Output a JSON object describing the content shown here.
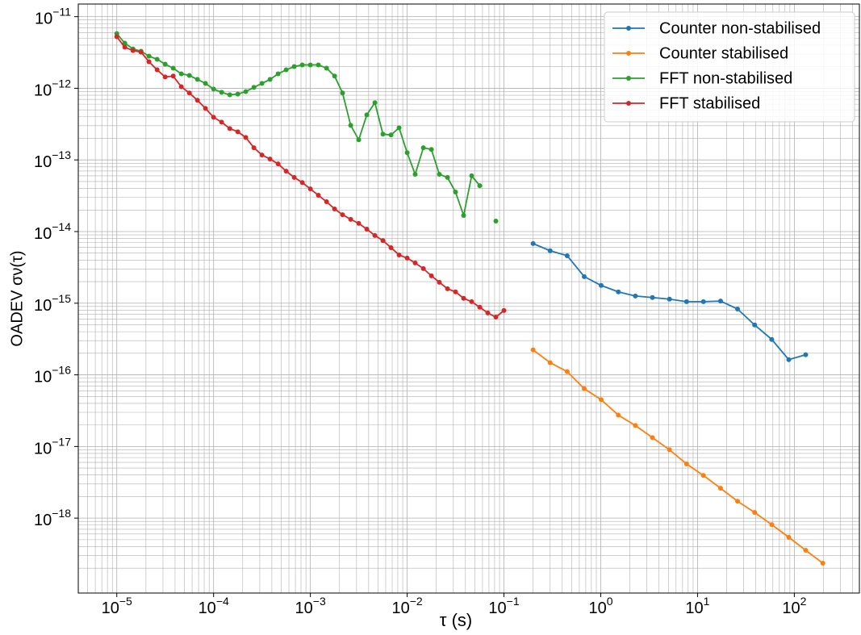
{
  "chart_data": {
    "type": "line",
    "x_label": "τ (s)",
    "y_label": "OADEV σν(τ)",
    "x_scale": "log",
    "y_scale": "log",
    "xlim": [
      4e-06,
      470
    ],
    "ylim": [
      9e-20,
      1.5e-11
    ],
    "xticks": [
      {
        "value": 1e-05,
        "label": "10^−5"
      },
      {
        "value": 0.0001,
        "label": "10^−4"
      },
      {
        "value": 0.001,
        "label": "10^−3"
      },
      {
        "value": 0.01,
        "label": "10^−2"
      },
      {
        "value": 0.1,
        "label": "10^−1"
      },
      {
        "value": 1,
        "label": "10^0"
      },
      {
        "value": 10,
        "label": "10^1"
      },
      {
        "value": 100,
        "label": "10^2"
      }
    ],
    "yticks": [
      {
        "value": 1e-11,
        "label": "10^−11"
      },
      {
        "value": 1e-12,
        "label": "10^−12"
      },
      {
        "value": 1e-13,
        "label": "10^−13"
      },
      {
        "value": 1e-14,
        "label": "10^−14"
      },
      {
        "value": 1e-15,
        "label": "10^−15"
      },
      {
        "value": 1e-16,
        "label": "10^−16"
      },
      {
        "value": 1e-17,
        "label": "10^−17"
      },
      {
        "value": 1e-18,
        "label": "10^−18"
      }
    ],
    "grid": true,
    "minor_grid": true,
    "legend": "upper right",
    "series": [
      {
        "name": "Counter non-stabilised",
        "color": "#1f77b4",
        "x": [
          0.2,
          0.3,
          0.45,
          0.675,
          1.01,
          1.52,
          2.28,
          3.42,
          5.13,
          7.7,
          11.5,
          17.3,
          25.9,
          38.9,
          58.4,
          87.6,
          131
        ],
        "values": [
          6.8e-15,
          5.4e-15,
          4.6e-15,
          2.35e-15,
          1.77e-15,
          1.44e-15,
          1.26e-15,
          1.2e-15,
          1.14e-15,
          1.05e-15,
          1.05e-15,
          1.07e-15,
          8.3e-16,
          4.97e-16,
          3.12e-16,
          1.63e-16,
          1.91e-16
        ]
      },
      {
        "name": "Counter stabilised",
        "color": "#ff7f0e",
        "x": [
          0.2,
          0.3,
          0.45,
          0.675,
          1.01,
          1.52,
          2.28,
          3.42,
          5.13,
          7.7,
          11.5,
          17.3,
          25.9,
          38.9,
          58.4,
          87.6,
          131,
          197
        ],
        "values": [
          2.23e-16,
          1.48e-16,
          1.11e-16,
          6.4e-17,
          4.5e-17,
          2.74e-17,
          1.96e-17,
          1.33e-17,
          9e-18,
          5.7e-18,
          3.94e-18,
          2.61e-18,
          1.72e-18,
          1.2e-18,
          8.1e-19,
          5.4e-19,
          3.56e-19,
          2.35e-19
        ]
      },
      {
        "name": "FFT non-stabilised",
        "color": "#2ca02c",
        "x": [
          1e-05,
          1.21e-05,
          1.47e-05,
          1.78e-05,
          2.15e-05,
          2.61e-05,
          3.16e-05,
          3.83e-05,
          4.64e-05,
          5.62e-05,
          6.81e-05,
          8.25e-05,
          0.0001,
          0.000121,
          0.000147,
          0.000178,
          0.000215,
          0.000261,
          0.000316,
          0.000383,
          0.000464,
          0.000562,
          0.000681,
          0.000825,
          0.001,
          0.00121,
          0.00147,
          0.00178,
          0.00215,
          0.00261,
          0.00316,
          0.00383,
          0.00464,
          0.00562,
          0.00681,
          0.00825,
          0.01,
          0.0121,
          0.0147,
          0.0178,
          0.0215,
          0.0261,
          0.0316,
          0.0383,
          0.0464,
          0.0562,
          0.0681,
          0.0825
        ],
        "values": [
          5.8e-12,
          4.26e-12,
          3.55e-12,
          3.29e-12,
          2.81e-12,
          2.54e-12,
          2.17e-12,
          1.91e-12,
          1.59e-12,
          1.51e-12,
          1.33e-12,
          1.17e-12,
          9.75e-13,
          8.8e-13,
          8.1e-13,
          8.3e-13,
          9e-13,
          1.03e-12,
          1.17e-12,
          1.33e-12,
          1.59e-12,
          1.81e-12,
          2.01e-12,
          2.12e-12,
          2.12e-12,
          2.12e-12,
          1.91e-12,
          1.48e-12,
          8.6e-13,
          3.04e-13,
          1.91e-13,
          4.26e-13,
          6.3e-13,
          2.29e-13,
          2.23e-13,
          2.81e-13,
          1.26e-13,
          6.3e-14,
          1.48e-13,
          1.4e-13,
          6.3e-14,
          5.7e-14,
          3.56e-14,
          1.68e-14,
          6e-14,
          4.37e-14,
          null,
          1.4e-14
        ]
      },
      {
        "name": "FFT stabilised",
        "color": "#d62728",
        "x": [
          1e-05,
          1.21e-05,
          1.47e-05,
          1.78e-05,
          2.15e-05,
          2.61e-05,
          3.16e-05,
          3.83e-05,
          4.64e-05,
          5.62e-05,
          6.81e-05,
          8.25e-05,
          0.0001,
          0.000121,
          0.000147,
          0.000178,
          0.000215,
          0.000261,
          0.000316,
          0.000383,
          0.000464,
          0.000562,
          0.000681,
          0.000825,
          0.001,
          0.00121,
          0.00147,
          0.00178,
          0.00215,
          0.00261,
          0.00316,
          0.00383,
          0.00464,
          0.00562,
          0.00681,
          0.00825,
          0.01,
          0.0121,
          0.0147,
          0.0178,
          0.0215,
          0.0261,
          0.0316,
          0.0383,
          0.0464,
          0.0562,
          0.0681,
          0.0825,
          0.1
        ],
        "values": [
          5.24e-12,
          3.74e-12,
          3.37e-12,
          3.2e-12,
          2.35e-12,
          1.81e-12,
          1.44e-12,
          1.48e-12,
          1.05e-12,
          8.6e-13,
          6.8e-13,
          5.24e-13,
          3.94e-13,
          3.37e-13,
          2.74e-13,
          2.47e-13,
          2.06e-13,
          1.48e-13,
          1.17e-13,
          1.03e-13,
          8.8e-14,
          6.97e-14,
          5.7e-14,
          4.84e-14,
          3.94e-14,
          3.21e-14,
          2.61e-14,
          2.07e-14,
          1.72e-14,
          1.48e-14,
          1.3e-14,
          1.08e-14,
          8.8e-15,
          7.5e-15,
          5.96e-15,
          4.72e-15,
          4.26e-15,
          3.65e-15,
          3.04e-15,
          2.41e-15,
          1.96e-15,
          1.59e-15,
          1.44e-15,
          1.17e-15,
          1.05e-15,
          8.8e-16,
          7.3e-16,
          6.4e-16,
          7.9e-16
        ]
      }
    ]
  }
}
